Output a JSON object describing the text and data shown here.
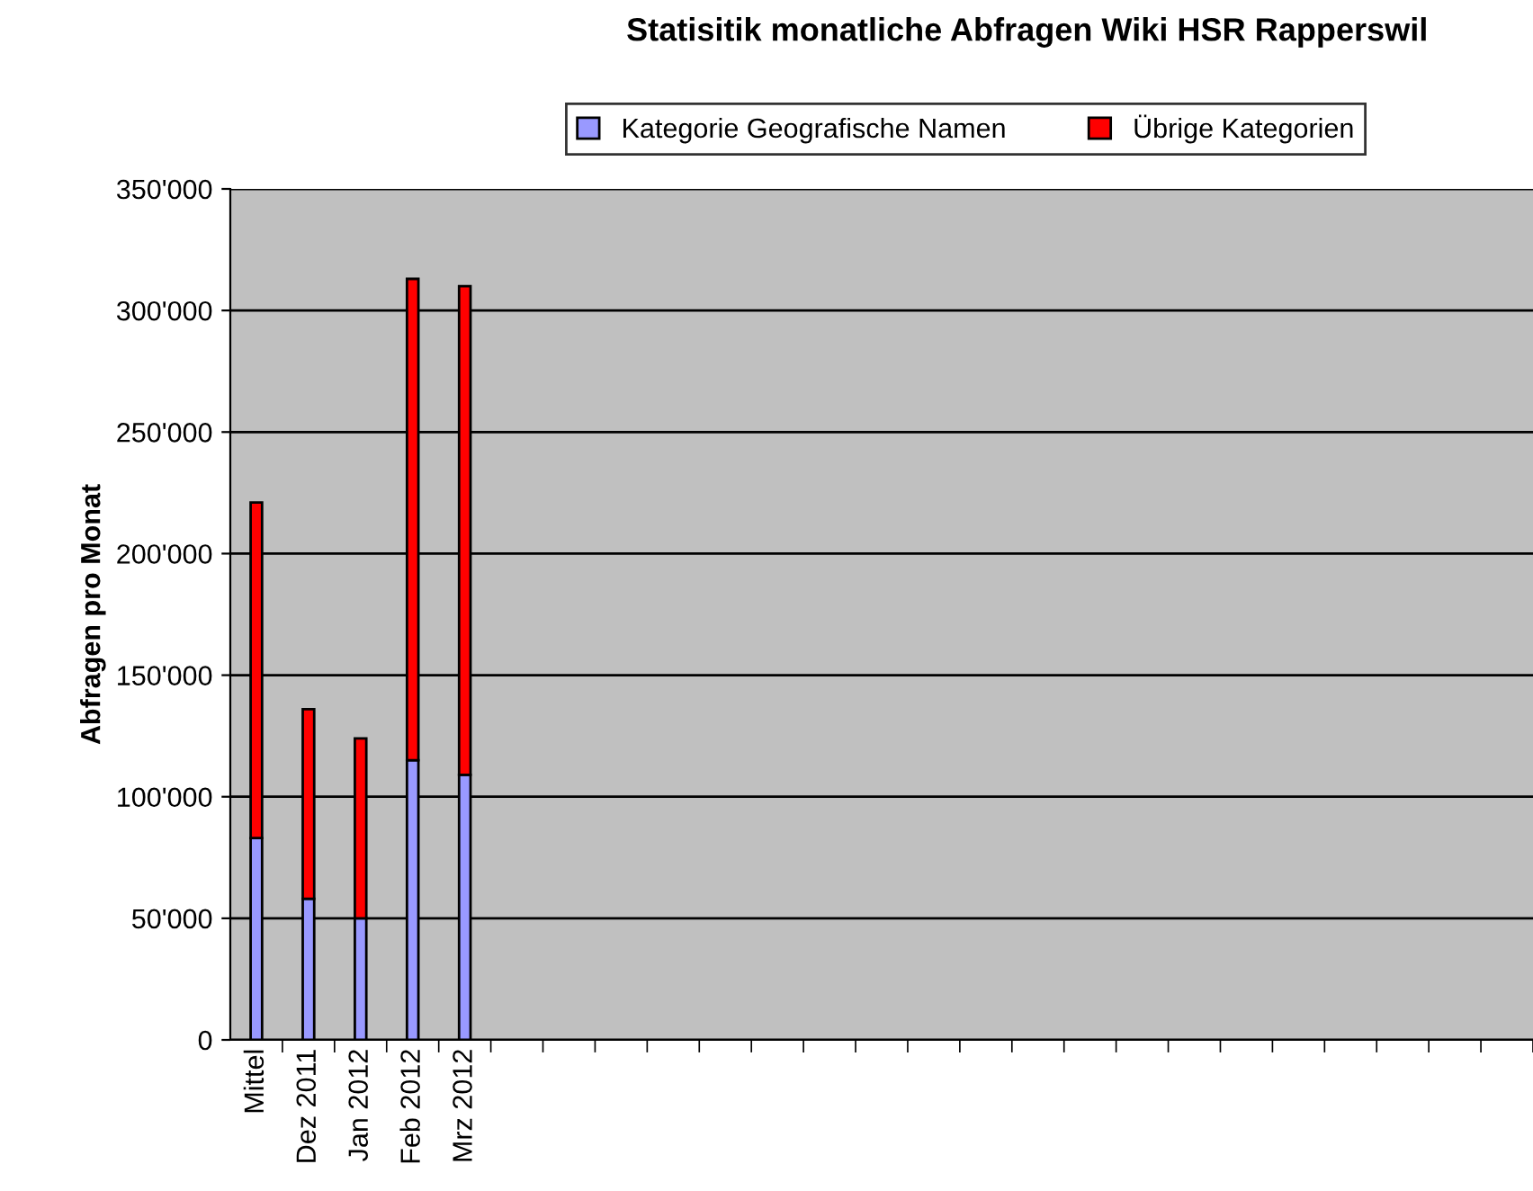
{
  "chart_data": {
    "type": "bar",
    "stacked": true,
    "title": "Statisitik monatliche Abfragen Wiki HSR Rapperswil",
    "ylabel": "Abfragen pro Monat",
    "categories": [
      "Mittel",
      "Dez 2011",
      "Jan 2012",
      "Feb 2012",
      "Mrz 2012",
      null,
      null,
      null,
      null,
      null,
      null,
      null,
      null,
      null,
      null,
      null,
      null,
      null,
      null,
      null,
      null,
      null,
      null,
      null,
      null
    ],
    "series": [
      {
        "name": "Kategorie Geografische Namen",
        "color": "#9999ff",
        "values": [
          83000,
          58000,
          50000,
          115000,
          109000,
          null,
          null,
          null,
          null,
          null,
          null,
          null,
          null,
          null,
          null,
          null,
          null,
          null,
          null,
          null,
          null,
          null,
          null,
          null,
          null
        ]
      },
      {
        "name": "Übrige Kategorien",
        "color": "#ff0000",
        "values": [
          138000,
          78000,
          74000,
          198000,
          201000,
          null,
          null,
          null,
          null,
          null,
          null,
          null,
          null,
          null,
          null,
          null,
          null,
          null,
          null,
          null,
          null,
          null,
          null,
          null,
          null
        ]
      }
    ],
    "ylim": [
      0,
      350000
    ],
    "yticks": [
      0,
      {
        "value": 50000,
        "label": "50'000"
      },
      {
        "value": 100000,
        "label": "100'000"
      },
      {
        "value": 150000,
        "label": "150'000"
      },
      {
        "value": 200000,
        "label": "200'000"
      },
      {
        "value": 250000,
        "label": "250'000"
      },
      {
        "value": 300000,
        "label": "300'000"
      },
      {
        "value": 350000,
        "label": "350'000"
      }
    ],
    "grid": "y",
    "legend": "top"
  }
}
